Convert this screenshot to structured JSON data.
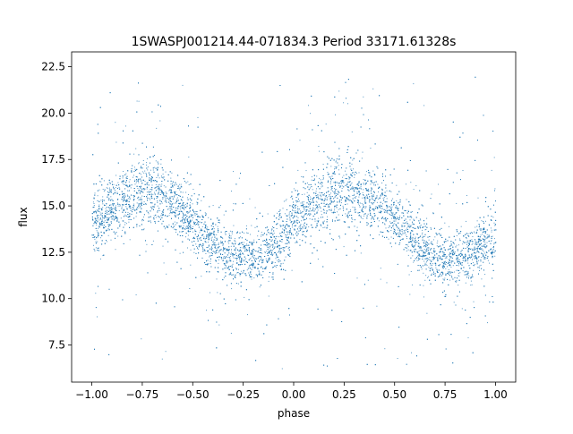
{
  "chart_data": {
    "type": "scatter",
    "title": "1SWASPJ001214.44-071834.3 Period 33171.61328s",
    "xlabel": "phase",
    "ylabel": "flux",
    "xlim": [
      -1.1,
      1.1
    ],
    "ylim": [
      5.5,
      23.3
    ],
    "xticks": [
      -1.0,
      -0.75,
      -0.5,
      -0.25,
      0.0,
      0.25,
      0.5,
      0.75,
      1.0
    ],
    "xtick_labels": [
      "−1.00",
      "−0.75",
      "−0.50",
      "−0.25",
      "0.00",
      "0.25",
      "0.50",
      "0.75",
      "1.00"
    ],
    "yticks": [
      7.5,
      10.0,
      12.5,
      15.0,
      17.5,
      20.0,
      22.5
    ],
    "ytick_labels": [
      "7.5",
      "10.0",
      "12.5",
      "15.0",
      "17.5",
      "20.0",
      "22.5"
    ],
    "grid": false,
    "legend": "none",
    "point_color": "#1f77b4",
    "x": [
      -1.0,
      -0.95,
      -0.9,
      -0.85,
      -0.8,
      -0.75,
      -0.7,
      -0.65,
      -0.6,
      -0.55,
      -0.5,
      -0.45,
      -0.4,
      -0.35,
      -0.3,
      -0.25,
      -0.2,
      -0.15,
      -0.1,
      -0.05,
      0.0,
      0.05,
      0.1,
      0.15,
      0.2,
      0.25,
      0.3,
      0.35,
      0.4,
      0.45,
      0.5,
      0.55,
      0.6,
      0.65,
      0.7,
      0.75,
      0.8,
      0.85,
      0.9,
      0.95,
      1.0
    ],
    "y": [
      13.8,
      14.4,
      14.9,
      15.3,
      15.6,
      15.8,
      15.8,
      15.6,
      15.2,
      14.7,
      14.1,
      13.5,
      13.0,
      12.6,
      12.3,
      12.2,
      12.2,
      12.5,
      12.9,
      13.4,
      14.0,
      14.6,
      15.1,
      15.5,
      15.8,
      15.9,
      15.9,
      15.7,
      15.4,
      14.9,
      14.3,
      13.7,
      13.1,
      12.6,
      12.3,
      12.1,
      12.1,
      12.3,
      12.6,
      13.0,
      13.5
    ],
    "scatter_width": [
      1.2,
      1.1,
      1.1,
      1.2,
      1.3,
      1.3,
      1.3,
      1.2,
      1.1,
      1.0,
      1.0,
      1.0,
      1.0,
      1.0,
      1.0,
      1.0,
      1.0,
      1.0,
      1.0,
      1.0,
      1.0,
      1.0,
      1.1,
      1.2,
      1.3,
      1.3,
      1.3,
      1.2,
      1.1,
      1.0,
      1.0,
      1.0,
      1.0,
      1.0,
      1.0,
      1.0,
      1.0,
      1.0,
      1.0,
      1.1,
      1.2
    ]
  }
}
